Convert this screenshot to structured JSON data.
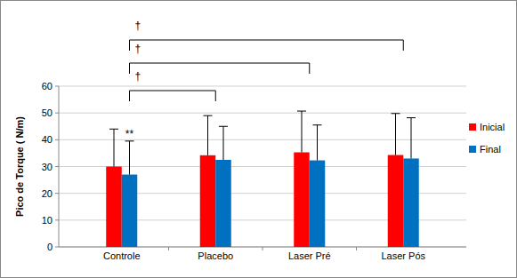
{
  "chart_data": {
    "type": "bar",
    "y_label": "Pico de Torque ( N/m)",
    "categories": [
      "Controle",
      "Placebo",
      "Laser Pré",
      "Laser Pós"
    ],
    "series": [
      {
        "name": "Inicial",
        "color": "#ff0000",
        "values": [
          30,
          34.2,
          35.3,
          34.3
        ],
        "errors": [
          14,
          14.8,
          15.4,
          15.5
        ]
      },
      {
        "name": "Final",
        "color": "#0070c0",
        "values": [
          27,
          32.5,
          32.3,
          33
        ],
        "errors": [
          12.5,
          12.5,
          13.2,
          15.2
        ]
      }
    ],
    "ylim": [
      0,
      60
    ],
    "yticks": [
      0,
      10,
      20,
      30,
      40,
      50,
      60
    ],
    "grid": true,
    "legend": "right",
    "annotations": [
      {
        "text": "**",
        "category": 0,
        "series": 1
      }
    ],
    "brackets": [
      {
        "from": 0,
        "to": 1,
        "label": "†"
      },
      {
        "from": 0,
        "to": 2,
        "label": "†"
      },
      {
        "from": 0,
        "to": 3,
        "label": "†"
      }
    ]
  }
}
